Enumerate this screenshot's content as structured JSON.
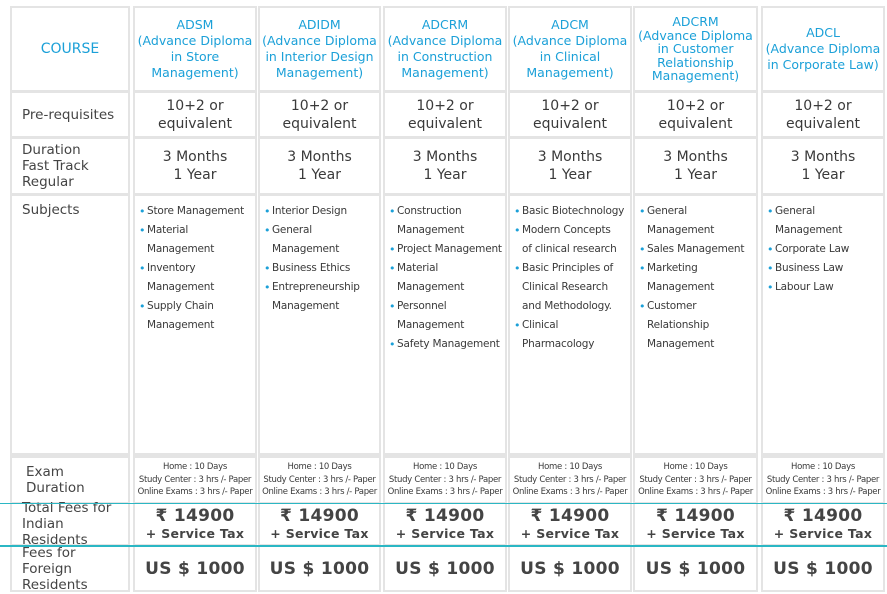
{
  "label_column": {
    "course": "COURSE",
    "prerequisites": "Pre-requisites",
    "duration": [
      "Duration",
      "Fast Track",
      "Regular"
    ],
    "subjects": "Subjects",
    "exam_duration": [
      "Exam",
      "Duration"
    ],
    "fees_indian": [
      "Total Fees for",
      "Indian Residents"
    ],
    "fees_foreign": [
      "Fees for Foreign",
      "Residents"
    ]
  },
  "courses": [
    {
      "code": "ADSM",
      "name_lines": [
        "(Advance Diploma",
        "in Store",
        "Management)"
      ],
      "prerequisite": [
        "10+2 or",
        "equivalent"
      ],
      "duration": [
        "3 Months",
        "1 Year"
      ],
      "subjects": [
        [
          "Store Management"
        ],
        [
          "Material Management"
        ],
        [
          "Inventory Management"
        ],
        [
          "Supply Chain",
          "Management"
        ]
      ],
      "exam": [
        "Home : 10 Days",
        "Study Center : 3 hrs /- Paper",
        "Online Exams : 3 hrs /- Paper"
      ],
      "fee_indian": "₹ 14900",
      "service_tax": "+ Service Tax",
      "fee_foreign": "US $ 1000"
    },
    {
      "code": "ADIDM",
      "name_lines": [
        "(Advance Diploma",
        "in Interior Design",
        "Management)"
      ],
      "prerequisite": [
        "10+2 or",
        "equivalent"
      ],
      "duration": [
        "3 Months",
        "1 Year"
      ],
      "subjects": [
        [
          "Interior Design"
        ],
        [
          "General",
          "Management"
        ],
        [
          "Business Ethics"
        ],
        [
          "Entrepreneurship",
          "Management"
        ]
      ],
      "exam": [
        "Home : 10 Days",
        "Study Center : 3 hrs /- Paper",
        "Online Exams : 3 hrs /- Paper"
      ],
      "fee_indian": "₹ 14900",
      "service_tax": "+ Service Tax",
      "fee_foreign": "US $ 1000"
    },
    {
      "code": "ADCRM",
      "name_lines": [
        "(Advance Diploma",
        "in Construction",
        "Management)"
      ],
      "prerequisite": [
        "10+2 or",
        "equivalent"
      ],
      "duration": [
        "3 Months",
        "1 Year"
      ],
      "subjects": [
        [
          "Construction",
          "Management"
        ],
        [
          "Project Management"
        ],
        [
          "Material Management"
        ],
        [
          "Personnel Management"
        ],
        [
          "Safety Management"
        ]
      ],
      "exam": [
        "Home : 10 Days",
        "Study Center : 3 hrs /- Paper",
        "Online Exams : 3 hrs /- Paper"
      ],
      "fee_indian": "₹ 14900",
      "service_tax": "+ Service Tax",
      "fee_foreign": "US $ 1000"
    },
    {
      "code": "ADCM",
      "name_lines": [
        "(Advance Diploma",
        "in Clinical",
        "Management)"
      ],
      "prerequisite": [
        "10+2 or",
        "equivalent"
      ],
      "duration": [
        "3 Months",
        "1 Year"
      ],
      "subjects": [
        [
          "Basic Biotechnology"
        ],
        [
          "Modern Concepts",
          "of clinical research"
        ],
        [
          "Basic Principles of",
          "Clinical Research",
          "and Methodology."
        ],
        [
          "Clinical",
          "Pharmacology"
        ]
      ],
      "exam": [
        "Home : 10 Days",
        "Study Center : 3 hrs /- Paper",
        "Online Exams : 3 hrs /- Paper"
      ],
      "fee_indian": "₹ 14900",
      "service_tax": "+ Service Tax",
      "fee_foreign": "US $ 1000"
    },
    {
      "code": "ADCRM",
      "name_lines": [
        "(Advance Diploma",
        "in Customer",
        "Relationship",
        "Management)"
      ],
      "prerequisite": [
        "10+2 or",
        "equivalent"
      ],
      "duration": [
        "3 Months",
        "1 Year"
      ],
      "subjects": [
        [
          "General",
          "Management"
        ],
        [
          "Sales Management"
        ],
        [
          "Marketing",
          "Management"
        ],
        [
          "Customer",
          "Relationship",
          "Management"
        ]
      ],
      "exam": [
        "Home : 10 Days",
        "Study Center : 3 hrs /- Paper",
        "Online Exams : 3 hrs /- Paper"
      ],
      "fee_indian": "₹ 14900",
      "service_tax": "+ Service Tax",
      "fee_foreign": "US $ 1000"
    },
    {
      "code": "ADCL",
      "name_lines": [
        "(Advance Diploma",
        "in Corporate Law)"
      ],
      "prerequisite": [
        "10+2 or",
        "equivalent"
      ],
      "duration": [
        "3 Months",
        "1 Year"
      ],
      "subjects": [
        [
          "General Management"
        ],
        [
          "Corporate Law"
        ],
        [
          "Business Law"
        ],
        [
          "Labour Law"
        ]
      ],
      "exam": [
        "Home : 10 Days",
        "Study Center : 3 hrs /- Paper",
        "Online Exams : 3 hrs /- Paper"
      ],
      "fee_indian": "₹ 14900",
      "service_tax": "+ Service Tax",
      "fee_foreign": "US $ 1000"
    }
  ],
  "colors": {
    "accent": "#1ba0d8",
    "divider": "#2bb7c4",
    "panel": "#e4e4e4"
  }
}
